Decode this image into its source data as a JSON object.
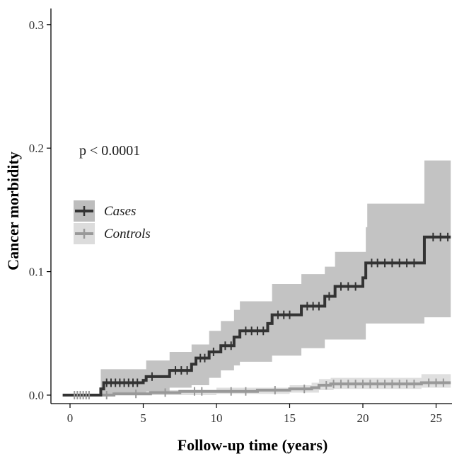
{
  "chart_data": {
    "type": "line",
    "subtype": "kaplan-meier cumulative incidence (step)",
    "xlabel": "Follow-up time (years)",
    "ylabel": "Cancer morbidity",
    "xlim": [
      -1.5,
      26
    ],
    "ylim": [
      -0.013,
      0.32
    ],
    "xticks": [
      0,
      5,
      10,
      15,
      20,
      25
    ],
    "xtick_labels": [
      "0",
      "5",
      "10",
      "15",
      "20",
      "25"
    ],
    "yticks": [
      0.0,
      0.1,
      0.2,
      0.3
    ],
    "ytick_labels": [
      "0.0",
      "0.1",
      "0.2",
      "0.3"
    ],
    "grid": false,
    "annotation": "p < 0.0001",
    "legend": {
      "position": "left, mid-height",
      "entries": [
        "Cases",
        "Controls"
      ]
    },
    "series": [
      {
        "name": "Cases",
        "color": "#333333",
        "band_color": "#bdbdbd",
        "steps": [
          [
            -0.5,
            0.0
          ],
          [
            2.1,
            0.005
          ],
          [
            2.3,
            0.01
          ],
          [
            5.0,
            0.012
          ],
          [
            5.2,
            0.015
          ],
          [
            6.8,
            0.02
          ],
          [
            8.3,
            0.025
          ],
          [
            8.6,
            0.03
          ],
          [
            9.5,
            0.035
          ],
          [
            10.3,
            0.04
          ],
          [
            11.2,
            0.047
          ],
          [
            11.6,
            0.052
          ],
          [
            13.5,
            0.058
          ],
          [
            13.8,
            0.065
          ],
          [
            15.8,
            0.072
          ],
          [
            17.4,
            0.08
          ],
          [
            18.1,
            0.088
          ],
          [
            20.0,
            0.095
          ],
          [
            20.2,
            0.107
          ],
          [
            24.2,
            0.128
          ],
          [
            26,
            0.128
          ]
        ],
        "lower": [
          [
            -0.5,
            0.0
          ],
          [
            2.1,
            0.0
          ],
          [
            5.2,
            0.003
          ],
          [
            6.8,
            0.006
          ],
          [
            8.3,
            0.008
          ],
          [
            9.5,
            0.014
          ],
          [
            10.3,
            0.02
          ],
          [
            11.2,
            0.024
          ],
          [
            11.6,
            0.027
          ],
          [
            13.8,
            0.032
          ],
          [
            15.8,
            0.038
          ],
          [
            17.4,
            0.045
          ],
          [
            20.2,
            0.058
          ],
          [
            24.2,
            0.063
          ],
          [
            26,
            0.063
          ]
        ],
        "upper": [
          [
            -0.5,
            0.0
          ],
          [
            2.1,
            0.021
          ],
          [
            5.2,
            0.028
          ],
          [
            6.8,
            0.035
          ],
          [
            8.3,
            0.041
          ],
          [
            9.5,
            0.052
          ],
          [
            10.3,
            0.06
          ],
          [
            11.2,
            0.069
          ],
          [
            11.6,
            0.076
          ],
          [
            13.8,
            0.09
          ],
          [
            15.8,
            0.098
          ],
          [
            17.4,
            0.104
          ],
          [
            18.1,
            0.116
          ],
          [
            20.2,
            0.136
          ],
          [
            20.3,
            0.155
          ],
          [
            24.2,
            0.19
          ],
          [
            26,
            0.19
          ]
        ],
        "censor_x": [
          2.5,
          2.8,
          3.1,
          3.4,
          3.7,
          4.0,
          4.3,
          4.6,
          5.6,
          7.2,
          7.6,
          8.0,
          8.9,
          9.2,
          9.8,
          10.6,
          11.0,
          12.0,
          12.4,
          12.8,
          13.2,
          14.2,
          14.6,
          15.0,
          16.2,
          16.6,
          17.0,
          17.7,
          18.5,
          19.0,
          19.5,
          20.6,
          21.0,
          21.5,
          22.0,
          22.5,
          23.0,
          23.5,
          24.8,
          25.3,
          25.8
        ]
      },
      {
        "name": "Controls",
        "color": "#999999",
        "band_color": "#dcdcdc",
        "steps": [
          [
            -0.5,
            0.0
          ],
          [
            3.0,
            0.001
          ],
          [
            5.5,
            0.002
          ],
          [
            7.5,
            0.003
          ],
          [
            10.0,
            0.003
          ],
          [
            12.8,
            0.004
          ],
          [
            15.0,
            0.005
          ],
          [
            16.5,
            0.006
          ],
          [
            17.0,
            0.008
          ],
          [
            17.8,
            0.009
          ],
          [
            24.0,
            0.01
          ],
          [
            26,
            0.01
          ]
        ],
        "lower": [
          [
            -0.5,
            0.0
          ],
          [
            5.5,
            0.0
          ],
          [
            10.0,
            0.001
          ],
          [
            15.0,
            0.002
          ],
          [
            17.0,
            0.004
          ],
          [
            18.0,
            0.005
          ],
          [
            24.0,
            0.006
          ],
          [
            26,
            0.006
          ]
        ],
        "upper": [
          [
            -0.5,
            0.0
          ],
          [
            3.0,
            0.003
          ],
          [
            5.5,
            0.004
          ],
          [
            10.0,
            0.006
          ],
          [
            15.0,
            0.008
          ],
          [
            16.5,
            0.01
          ],
          [
            17.0,
            0.013
          ],
          [
            17.8,
            0.014
          ],
          [
            24.0,
            0.017
          ],
          [
            26,
            0.017
          ]
        ],
        "censor_x": [
          0.3,
          0.5,
          0.7,
          0.9,
          1.1,
          1.3,
          2.5,
          4.5,
          6.5,
          8.5,
          9.0,
          11.0,
          12.0,
          14.0,
          16.0,
          17.5,
          18.0,
          18.5,
          19.0,
          19.5,
          20.0,
          20.5,
          21.0,
          21.5,
          22.0,
          22.5,
          23.0,
          23.5,
          24.5,
          25.0,
          25.5
        ]
      }
    ]
  }
}
